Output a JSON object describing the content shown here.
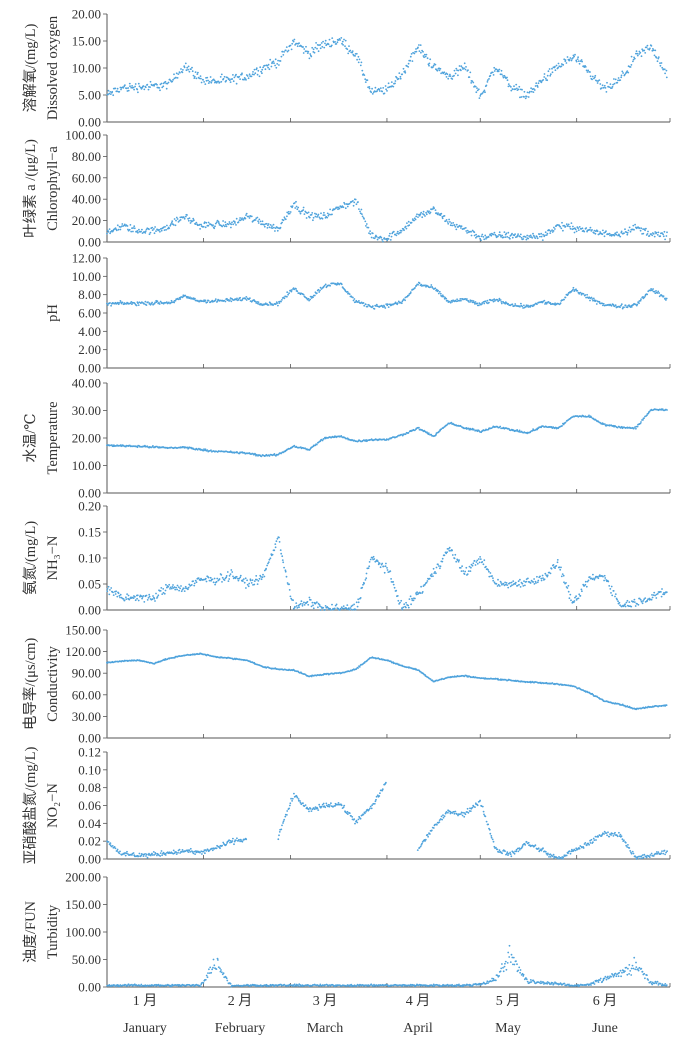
{
  "chart_data": {
    "type": "scatter",
    "point_color": "#4fa3dc",
    "x_axis": {
      "months_cn": [
        "1 月",
        "2 月",
        "3 月",
        "4 月",
        "5 月",
        "6 月"
      ],
      "months_en": [
        "January",
        "February",
        "March",
        "April",
        "May",
        "June"
      ]
    },
    "x": [
      "01-01",
      "01-06",
      "01-11",
      "01-16",
      "01-21",
      "01-26",
      "01-31",
      "02-05",
      "02-10",
      "02-15",
      "02-20",
      "02-25",
      "03-02",
      "03-07",
      "03-12",
      "03-17",
      "03-22",
      "03-27",
      "04-01",
      "04-06",
      "04-11",
      "04-16",
      "04-21",
      "04-26",
      "05-01",
      "05-06",
      "05-11",
      "05-16",
      "05-21",
      "05-26",
      "05-31",
      "06-05",
      "06-10",
      "06-15",
      "06-20",
      "06-25",
      "06-30"
    ],
    "panels": [
      {
        "ylabel_cn": "溶解氧/(mg/L)",
        "ylabel_en": "Dissolved oxygen",
        "ylim": [
          0,
          20
        ],
        "yticks": [
          "0.00",
          "5.00",
          "10.00",
          "15.00",
          "20.00"
        ],
        "values": [
          5.0,
          6.3,
          6.5,
          6.6,
          7.0,
          10.5,
          8.0,
          7.5,
          7.8,
          8.5,
          9.9,
          11.2,
          15.0,
          12.7,
          14.5,
          15.1,
          12.5,
          5.4,
          6.0,
          9.0,
          13.9,
          10.2,
          8.4,
          10.2,
          4.8,
          10.2,
          6.6,
          4.8,
          7.8,
          10.2,
          12.1,
          9.0,
          6.0,
          7.8,
          12.1,
          13.9,
          9.0
        ]
      },
      {
        "ylabel_cn": "叶绿素 a /(μg/L)",
        "ylabel_en": "Chlorophyll−a",
        "ylim": [
          0,
          100
        ],
        "yticks": [
          "0.00",
          "20.00",
          "40.00",
          "60.00",
          "80.00",
          "100.00"
        ],
        "values": [
          7.5,
          15,
          10.5,
          10.5,
          15,
          24,
          15,
          16.6,
          16.6,
          24,
          18,
          12,
          36,
          24,
          24,
          33,
          38,
          6,
          3,
          12,
          24,
          30,
          18,
          12,
          4.5,
          6,
          6,
          4.5,
          6,
          15,
          13.5,
          10.5,
          7.5,
          8.4,
          13.5,
          7.5,
          6
        ]
      },
      {
        "ylabel_cn": "",
        "ylabel_en": "pH",
        "ylim": [
          0,
          12
        ],
        "yticks": [
          "0.00",
          "2.00",
          "4.00",
          "6.00",
          "8.00",
          "10.00",
          "12.00"
        ],
        "values": [
          7.0,
          7.05,
          7.05,
          7.1,
          7.1,
          7.8,
          7.3,
          7.3,
          7.4,
          7.6,
          7.0,
          7.0,
          8.7,
          7.5,
          9.0,
          9.2,
          7.2,
          6.7,
          6.8,
          7.2,
          9.2,
          8.7,
          7.2,
          7.5,
          6.9,
          7.5,
          6.9,
          6.7,
          7.2,
          6.9,
          8.6,
          7.6,
          6.9,
          6.7,
          6.9,
          8.6,
          7.5
        ]
      },
      {
        "ylabel_cn": "水温/℃",
        "ylabel_en": "Temperature",
        "ylim": [
          0,
          40
        ],
        "yticks": [
          "0.00",
          "10.00",
          "20.00",
          "30.00",
          "40.00"
        ],
        "values": [
          17.3,
          17.2,
          17.0,
          16.7,
          16.4,
          16.6,
          15.8,
          15.2,
          14.8,
          14.5,
          13.5,
          13.9,
          17.0,
          15.8,
          20.0,
          20.6,
          18.8,
          19.4,
          19.4,
          21.2,
          23.6,
          20.6,
          25.5,
          23.6,
          22.4,
          24.2,
          23.0,
          21.8,
          24.2,
          23.6,
          27.9,
          27.9,
          24.8,
          23.9,
          23.6,
          30.3,
          30.3
        ]
      },
      {
        "ylabel_cn": "氨氮/(mg/L)",
        "ylabel_en": "NH₃−N",
        "ylim": [
          0,
          0.2
        ],
        "yticks": [
          "0.00",
          "0.05",
          "0.10",
          "0.15",
          "0.20"
        ],
        "values": [
          0.04,
          0.022,
          0.025,
          0.022,
          0.046,
          0.04,
          0.058,
          0.058,
          0.068,
          0.052,
          0.06,
          0.14,
          0.005,
          0.015,
          0.003,
          0.003,
          0.003,
          0.1,
          0.08,
          0.003,
          0.03,
          0.07,
          0.12,
          0.07,
          0.1,
          0.05,
          0.05,
          0.055,
          0.06,
          0.09,
          0.01,
          0.06,
          0.065,
          0.01,
          0.015,
          0.025,
          0.035
        ]
      },
      {
        "ylabel_cn": "电导率/(μs/cm)",
        "ylabel_en": "Conductivity",
        "ylim": [
          0,
          150
        ],
        "yticks": [
          "0.00",
          "30.00",
          "60.00",
          "90.00",
          "120.00",
          "150.00"
        ],
        "values": [
          104.5,
          107,
          108,
          103.6,
          110.5,
          115,
          117,
          112.7,
          110.5,
          108,
          99,
          95.5,
          94.5,
          85.5,
          88.6,
          90,
          95.5,
          112,
          108,
          100,
          94.5,
          78.6,
          84.5,
          86.4,
          83,
          82,
          80,
          78,
          76.4,
          75,
          71.8,
          62.7,
          51.4,
          46.8,
          40,
          43.6,
          45.5
        ]
      },
      {
        "ylabel_cn": "亚硝酸盐氮/(mg/L)",
        "ylabel_en": "NO₂−N",
        "ylim": [
          0,
          0.12
        ],
        "yticks": [
          "0.00",
          "0.02",
          "0.04",
          "0.06",
          "0.08",
          "0.10",
          "0.12"
        ],
        "values": [
          0.02,
          0.005,
          0.004,
          0.005,
          0.007,
          0.009,
          0.007,
          0.012,
          0.02,
          0.022,
          null,
          0.025,
          0.072,
          0.054,
          0.06,
          0.061,
          0.042,
          0.058,
          0.087,
          null,
          0.011,
          0.036,
          0.054,
          0.05,
          0.065,
          0.011,
          0.005,
          0.018,
          0.009,
          0.0,
          0.009,
          0.018,
          0.029,
          0.027,
          0.001,
          0.004,
          0.008
        ]
      },
      {
        "ylabel_cn": "浊度/FUN",
        "ylabel_en": "Turbidity",
        "ylim": [
          0,
          200
        ],
        "yticks": [
          "0.00",
          "50.00",
          "100.00",
          "150.00",
          "200.00"
        ],
        "values": [
          3,
          3,
          3,
          3,
          3,
          3,
          3,
          45,
          2,
          3,
          3,
          3,
          3,
          3,
          3,
          3,
          3,
          3,
          3,
          3,
          3,
          3,
          3,
          3,
          5,
          15,
          60,
          10,
          8,
          6,
          2,
          5,
          15,
          25,
          40,
          8,
          3
        ]
      }
    ]
  }
}
